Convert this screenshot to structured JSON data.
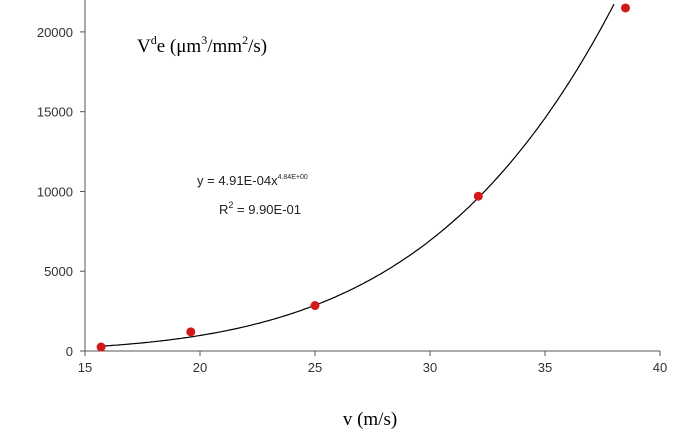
{
  "chart_data": {
    "type": "scatter",
    "title": "",
    "ylabel_parts": {
      "base": "V",
      "sup1": "d",
      "mid1": "e (μm",
      "sup2": "3",
      "mid2": "/mm",
      "sup3": "2",
      "tail": "/s)"
    },
    "xlabel": "v (m/s)",
    "xlim": [
      15,
      40
    ],
    "ylim": [
      0,
      22000
    ],
    "xticks": [
      15,
      20,
      25,
      30,
      35,
      40
    ],
    "yticks": [
      0,
      5000,
      10000,
      15000,
      20000
    ],
    "grid": false,
    "series": [
      {
        "points": [
          {
            "x": 15.7,
            "y": 250
          },
          {
            "x": 19.6,
            "y": 1200
          },
          {
            "x": 25.0,
            "y": 2850
          },
          {
            "x": 32.1,
            "y": 9700
          },
          {
            "x": 38.5,
            "y": 21500
          }
        ],
        "color": "#d21818"
      }
    ],
    "trendline": {
      "type": "power",
      "a": 0.000491,
      "b": 4.84,
      "color": "#000000",
      "equation_main": "y = 4.91E-04x",
      "equation_exp": "4.84E+00",
      "r2_label": "R",
      "r2_sup": "2",
      "r2_value": " = 9.90E-01"
    }
  }
}
